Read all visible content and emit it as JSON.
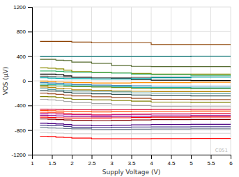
{
  "chart_data": {
    "type": "step",
    "xlabel": "Supply Voltage (V)",
    "ylabel": "VOS (μV)",
    "annotations": [
      "C051"
    ],
    "grid": true,
    "xlim": [
      1,
      6
    ],
    "ylim": [
      -1200,
      1200
    ],
    "xticks": [
      1,
      1.5,
      2,
      2.5,
      3,
      3.5,
      4,
      4.5,
      5,
      5.5,
      6
    ],
    "yticks": [
      -1200,
      -800,
      -400,
      0,
      400,
      800,
      1200
    ],
    "x": [
      1.2,
      1.4,
      1.6,
      1.8,
      2.0,
      2.5,
      3.0,
      3.5,
      4.0,
      5.0,
      6.0
    ],
    "series": [
      {
        "values": [
          640,
          640,
          640,
          640,
          630,
          620,
          620,
          620,
          590,
          590,
          590
        ],
        "color": "#8B4000"
      },
      {
        "values": [
          395,
          395,
          395,
          395,
          395,
          395,
          395,
          395,
          395,
          400,
          395
        ],
        "color": "#007070"
      },
      {
        "values": [
          350,
          350,
          335,
          330,
          305,
          285,
          250,
          235,
          230,
          230,
          220
        ],
        "color": "#556B2F"
      },
      {
        "values": [
          210,
          205,
          195,
          175,
          150,
          140,
          130,
          120,
          110,
          110,
          100
        ],
        "color": "#8B8B00"
      },
      {
        "values": [
          160,
          160,
          155,
          145,
          140,
          135,
          125,
          110,
          100,
          90,
          80
        ],
        "color": "#3CB371"
      },
      {
        "values": [
          110,
          110,
          100,
          80,
          60,
          50,
          35,
          20,
          10,
          5,
          0
        ],
        "color": "#000000"
      },
      {
        "values": [
          75,
          70,
          65,
          60,
          55,
          50,
          50,
          55,
          60,
          65,
          65
        ],
        "color": "#606060"
      },
      {
        "values": [
          50,
          45,
          40,
          35,
          35,
          30,
          30,
          35,
          50,
          60,
          70
        ],
        "color": "#00AAAA"
      },
      {
        "values": [
          -5,
          -10,
          -20,
          -25,
          -30,
          -35,
          -35,
          -30,
          -30,
          -25,
          -25
        ],
        "color": "#FF8C00"
      },
      {
        "values": [
          -30,
          -35,
          -40,
          -50,
          -60,
          -70,
          -75,
          -80,
          -85,
          -85,
          -90
        ],
        "color": "#4682B4"
      },
      {
        "values": [
          -55,
          -60,
          -65,
          -70,
          -80,
          -90,
          -95,
          -105,
          -110,
          -115,
          -120
        ],
        "color": "#20B2AA"
      },
      {
        "values": [
          -75,
          -80,
          -85,
          -90,
          -95,
          -100,
          -110,
          -120,
          -125,
          -130,
          -135
        ],
        "color": "#6B8E23"
      },
      {
        "values": [
          -100,
          -110,
          -120,
          -130,
          -145,
          -155,
          -165,
          -170,
          -175,
          -175,
          -180
        ],
        "color": "#B8860B"
      },
      {
        "values": [
          -130,
          -140,
          -150,
          -160,
          -165,
          -170,
          -180,
          -195,
          -200,
          -205,
          -210
        ],
        "color": "#5F9EA0"
      },
      {
        "values": [
          -160,
          -165,
          -170,
          -185,
          -200,
          -210,
          -220,
          -230,
          -240,
          -245,
          -250
        ],
        "color": "#2F4F4F"
      },
      {
        "values": [
          -200,
          -210,
          -220,
          -230,
          -245,
          -260,
          -270,
          -285,
          -300,
          -305,
          -310
        ],
        "color": "#A0522D"
      },
      {
        "values": [
          -255,
          -260,
          -270,
          -285,
          -300,
          -310,
          -320,
          -330,
          -345,
          -350,
          -355
        ],
        "color": "#808000"
      },
      {
        "values": [
          -300,
          -310,
          -320,
          -335,
          -355,
          -370,
          -385,
          -400,
          -415,
          -420,
          -425
        ],
        "color": "#A9A9A9"
      },
      {
        "values": [
          -460,
          -462,
          -465,
          -468,
          -470,
          -472,
          -470,
          -468,
          -465,
          -462,
          -460
        ],
        "color": "#DC143C"
      },
      {
        "values": [
          -480,
          -485,
          -490,
          -495,
          -500,
          -505,
          -500,
          -495,
          -495,
          -490,
          -488
        ],
        "color": "#FF4500"
      },
      {
        "values": [
          -510,
          -515,
          -520,
          -530,
          -540,
          -550,
          -545,
          -540,
          -535,
          -530,
          -525
        ],
        "color": "#FF6347"
      },
      {
        "values": [
          -530,
          -535,
          -540,
          -545,
          -550,
          -555,
          -550,
          -545,
          -540,
          -538,
          -535
        ],
        "color": "#C71585"
      },
      {
        "values": [
          -560,
          -565,
          -570,
          -575,
          -580,
          -585,
          -580,
          -575,
          -570,
          -565,
          -560
        ],
        "color": "#8B008B"
      },
      {
        "values": [
          -590,
          -595,
          -600,
          -605,
          -605,
          -605,
          -600,
          -595,
          -590,
          -588,
          -585
        ],
        "color": "#FF0000"
      },
      {
        "values": [
          -620,
          -625,
          -630,
          -635,
          -640,
          -645,
          -640,
          -635,
          -630,
          -628,
          -625
        ],
        "color": "#800000"
      },
      {
        "values": [
          -690,
          -695,
          -700,
          -710,
          -720,
          -730,
          -720,
          -715,
          -710,
          -705,
          -700
        ],
        "color": "#4B0082"
      },
      {
        "values": [
          -720,
          -725,
          -730,
          -740,
          -755,
          -760,
          -755,
          -750,
          -748,
          -745,
          -742
        ],
        "color": "#483D8B"
      },
      {
        "values": [
          -760,
          -765,
          -770,
          -775,
          -780,
          -790,
          -788,
          -785,
          -782,
          -780,
          -778
        ],
        "color": "#708090"
      },
      {
        "values": [
          -840,
          -845,
          -850,
          -855,
          -858,
          -862,
          -860,
          -858,
          -855,
          -852,
          -850
        ],
        "color": "#D3D3D3"
      },
      {
        "values": [
          -900,
          -905,
          -915,
          -920,
          -930,
          -940,
          -940,
          -940,
          -938,
          -935,
          -930
        ],
        "color": "#FF0000"
      }
    ]
  }
}
